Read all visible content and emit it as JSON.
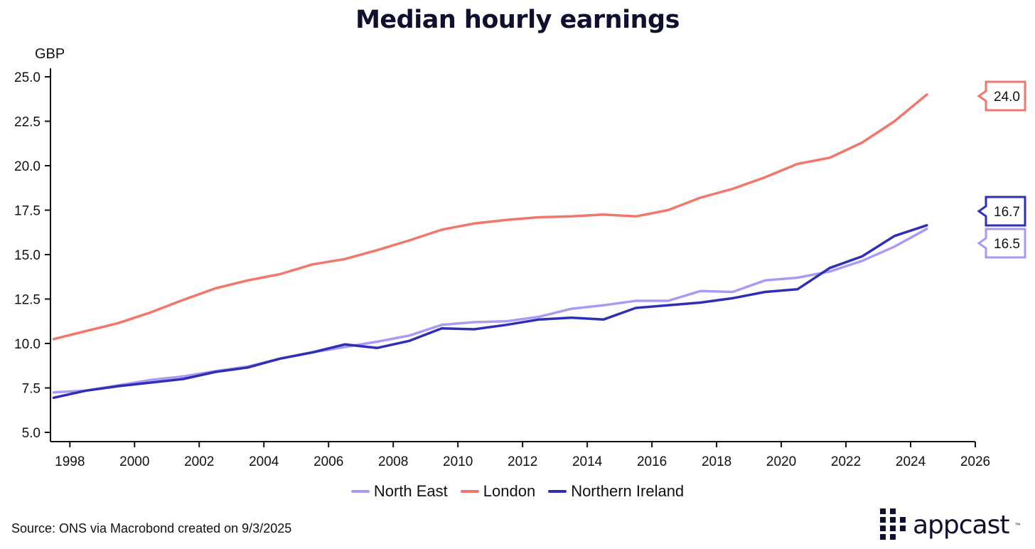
{
  "title": "Median hourly earnings",
  "source": "Source: ONS via Macrobond created on 9/3/2025",
  "brand": {
    "name": "appcast",
    "tm": "™"
  },
  "chart_data": {
    "type": "line",
    "title": "Median hourly earnings",
    "ylabel": "GBP",
    "xlabel": "",
    "ylim": [
      5.0,
      25.0
    ],
    "xlim": [
      1997.4,
      2026
    ],
    "yticks": [
      "5.0",
      "7.5",
      "10.0",
      "12.5",
      "15.0",
      "17.5",
      "20.0",
      "22.5",
      "25.0"
    ],
    "xticks": [
      "1998",
      "2000",
      "2002",
      "2004",
      "2006",
      "2008",
      "2010",
      "2012",
      "2014",
      "2016",
      "2018",
      "2020",
      "2022",
      "2024",
      "2026"
    ],
    "grid": false,
    "legend_position": "bottom",
    "x": [
      1997.5,
      1998.5,
      1999.5,
      2000.5,
      2001.5,
      2002.5,
      2003.5,
      2004.5,
      2005.5,
      2006.5,
      2007.5,
      2008.5,
      2009.5,
      2010.5,
      2011.5,
      2012.5,
      2013.5,
      2014.5,
      2015.5,
      2016.5,
      2017.5,
      2018.5,
      2019.5,
      2020.5,
      2021.5,
      2022.5,
      2023.5,
      2024.5
    ],
    "series": [
      {
        "name": "North East",
        "color": "#a99bf5",
        "end_label": "16.5",
        "values": [
          7.25,
          7.35,
          7.65,
          7.95,
          8.15,
          8.45,
          8.7,
          9.15,
          9.5,
          9.8,
          10.1,
          10.45,
          11.05,
          11.2,
          11.25,
          11.5,
          11.95,
          12.15,
          12.4,
          12.4,
          12.95,
          12.9,
          13.55,
          13.7,
          14.05,
          14.65,
          15.45,
          16.45
        ]
      },
      {
        "name": "London",
        "color": "#f2776a",
        "end_label": "24.0",
        "values": [
          10.25,
          10.7,
          11.15,
          11.75,
          12.45,
          13.1,
          13.55,
          13.9,
          14.45,
          14.75,
          15.25,
          15.8,
          16.4,
          16.75,
          16.95,
          17.1,
          17.15,
          17.25,
          17.15,
          17.5,
          18.2,
          18.7,
          19.35,
          20.1,
          20.45,
          21.3,
          22.5,
          24.0
        ]
      },
      {
        "name": "Northern Ireland",
        "color": "#2d2fb5",
        "end_label": "16.7",
        "values": [
          6.95,
          7.35,
          7.6,
          7.8,
          8.0,
          8.4,
          8.65,
          9.15,
          9.5,
          9.95,
          9.75,
          10.15,
          10.85,
          10.8,
          11.05,
          11.35,
          11.45,
          11.35,
          12.0,
          12.15,
          12.3,
          12.55,
          12.9,
          13.05,
          14.25,
          14.9,
          16.05,
          16.65
        ]
      }
    ]
  }
}
